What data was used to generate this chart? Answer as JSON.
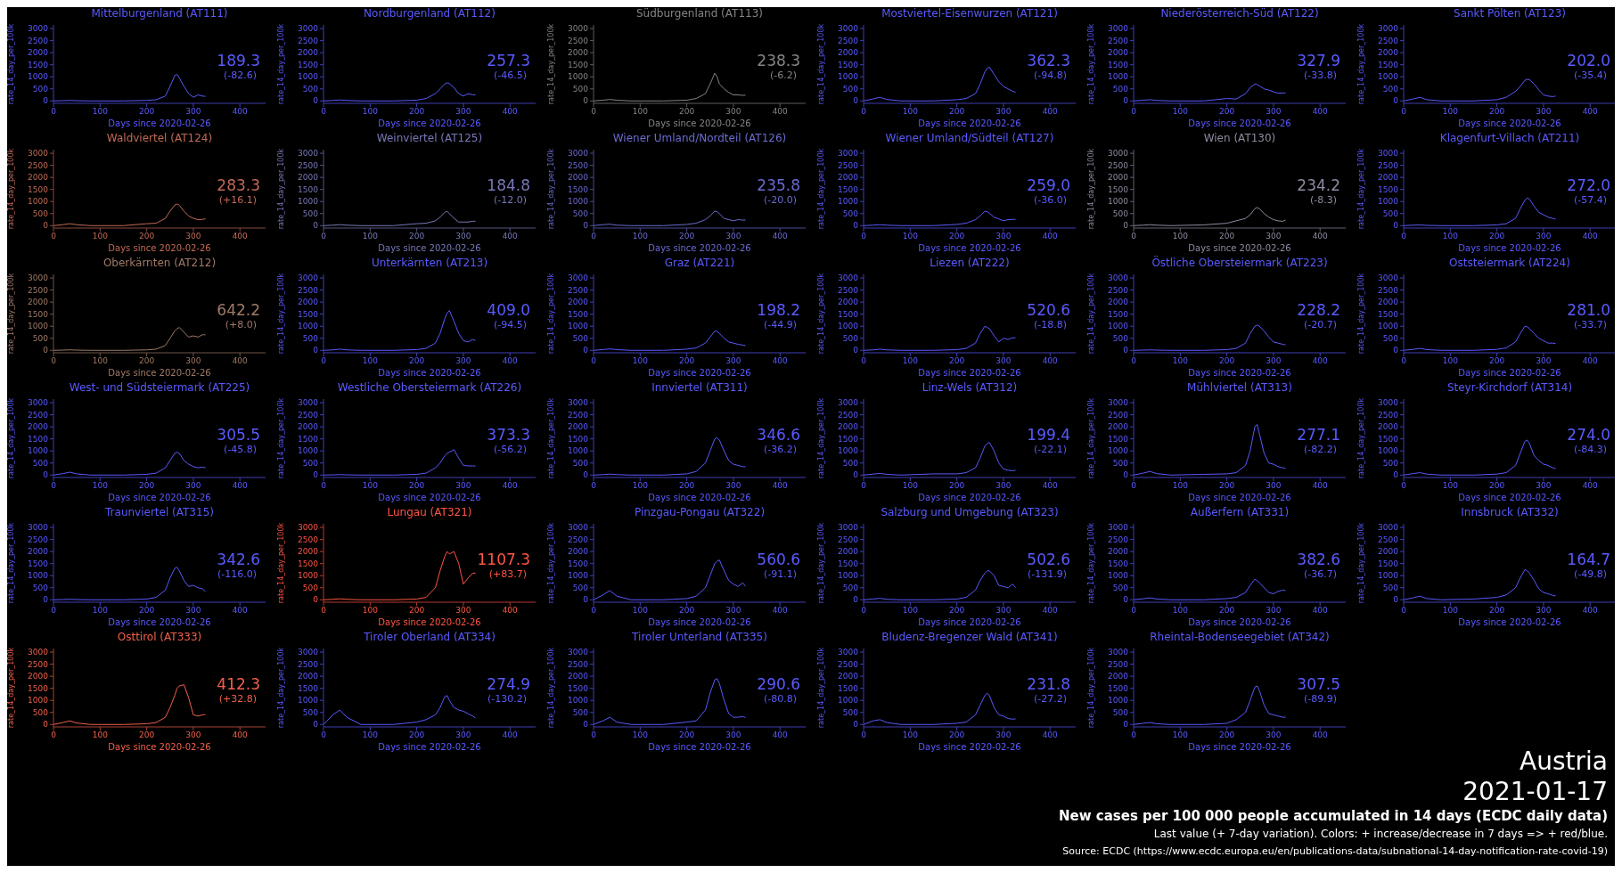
{
  "chart_data": [
    {
      "type": "line",
      "title": "Mittelburgenland (AT111)",
      "xlabel": "Days since 2020-02-26",
      "ylabel": "rate_14_day_per_100k",
      "color": "#5a5aff",
      "xlim": [
        0,
        455
      ],
      "xticks": [
        0,
        100,
        200,
        300,
        400
      ],
      "ylim": [
        -100,
        3150
      ],
      "yticks": [
        0,
        500,
        1000,
        1500,
        2000,
        2500,
        3000
      ],
      "annotations": [
        "189.3",
        "(-82.6)"
      ],
      "x": [
        0,
        20,
        35,
        50,
        80,
        150,
        200,
        220,
        240,
        250,
        260,
        265,
        270,
        280,
        290,
        300,
        310,
        320,
        326
      ],
      "values": [
        0,
        10,
        20,
        10,
        0,
        0,
        20,
        50,
        200,
        600,
        1050,
        1100,
        950,
        600,
        300,
        150,
        250,
        200,
        189.3
      ]
    },
    {
      "type": "line",
      "title": "Nordburgenland (AT112)",
      "xlabel": "Days since 2020-02-26",
      "ylabel": "rate_14_day_per_100k",
      "color": "#5a5aff",
      "xlim": [
        0,
        455
      ],
      "xticks": [
        0,
        100,
        200,
        300,
        400
      ],
      "ylim": [
        -100,
        3150
      ],
      "yticks": [
        0,
        500,
        1000,
        1500,
        2000,
        2500,
        3000
      ],
      "annotations": [
        "257.3",
        "(-46.5)"
      ],
      "x": [
        0,
        20,
        35,
        50,
        80,
        150,
        200,
        220,
        240,
        250,
        260,
        265,
        270,
        280,
        290,
        300,
        310,
        320,
        326
      ],
      "values": [
        0,
        20,
        40,
        20,
        0,
        0,
        30,
        100,
        300,
        500,
        700,
        750,
        720,
        550,
        300,
        200,
        300,
        250,
        257.3
      ]
    },
    {
      "type": "line",
      "title": "Südburgenland (AT113)",
      "xlabel": "Days since 2020-02-26",
      "ylabel": "rate_14_day_per_100k",
      "color": "#858585",
      "xlim": [
        0,
        455
      ],
      "xticks": [
        0,
        100,
        200,
        300,
        400
      ],
      "ylim": [
        -100,
        3150
      ],
      "yticks": [
        0,
        500,
        1000,
        1500,
        2000,
        2500,
        3000
      ],
      "annotations": [
        "238.3",
        "(-6.2)"
      ],
      "x": [
        0,
        20,
        35,
        50,
        80,
        150,
        200,
        220,
        240,
        250,
        260,
        265,
        270,
        280,
        290,
        300,
        310,
        320,
        326
      ],
      "values": [
        0,
        30,
        60,
        30,
        0,
        0,
        30,
        100,
        300,
        700,
        1150,
        1000,
        700,
        500,
        350,
        250,
        250,
        230,
        238.3
      ]
    },
    {
      "type": "line",
      "title": "Mostviertel-Eisenwurzen (AT121)",
      "xlabel": "Days since 2020-02-26",
      "ylabel": "rate_14_day_per_100k",
      "color": "#5a5aff",
      "xlim": [
        0,
        455
      ],
      "xticks": [
        0,
        100,
        200,
        300,
        400
      ],
      "ylim": [
        -100,
        3150
      ],
      "yticks": [
        0,
        500,
        1000,
        1500,
        2000,
        2500,
        3000
      ],
      "annotations": [
        "362.3",
        "(-94.8)"
      ],
      "x": [
        0,
        20,
        35,
        50,
        80,
        150,
        200,
        220,
        240,
        250,
        260,
        265,
        270,
        280,
        290,
        300,
        310,
        320,
        326
      ],
      "values": [
        0,
        80,
        150,
        60,
        0,
        0,
        50,
        100,
        300,
        700,
        1200,
        1350,
        1400,
        1100,
        800,
        600,
        500,
        400,
        362.3
      ]
    },
    {
      "type": "line",
      "title": "Niederösterreich-Süd (AT122)",
      "xlabel": "Days since 2020-02-26",
      "ylabel": "rate_14_day_per_100k",
      "color": "#5a5aff",
      "xlim": [
        0,
        455
      ],
      "xticks": [
        0,
        100,
        200,
        300,
        400
      ],
      "ylim": [
        -100,
        3150
      ],
      "yticks": [
        0,
        500,
        1000,
        1500,
        2000,
        2500,
        3000
      ],
      "annotations": [
        "327.9",
        "(-33.8)"
      ],
      "x": [
        0,
        20,
        35,
        50,
        80,
        150,
        200,
        220,
        240,
        250,
        260,
        265,
        270,
        280,
        290,
        300,
        310,
        320,
        326
      ],
      "values": [
        0,
        30,
        50,
        20,
        0,
        0,
        100,
        80,
        300,
        550,
        700,
        680,
        620,
        500,
        450,
        380,
        320,
        330,
        327.9
      ]
    },
    {
      "type": "line",
      "title": "Sankt Pölten (AT123)",
      "xlabel": "Days since 2020-02-26",
      "ylabel": "rate_14_day_per_100k",
      "color": "#5a5aff",
      "xlim": [
        0,
        455
      ],
      "xticks": [
        0,
        100,
        200,
        300,
        400
      ],
      "ylim": [
        -100,
        3150
      ],
      "yticks": [
        0,
        500,
        1000,
        1500,
        2000,
        2500,
        3000
      ],
      "annotations": [
        "202.0",
        "(-35.4)"
      ],
      "x": [
        0,
        20,
        35,
        50,
        80,
        150,
        200,
        220,
        240,
        250,
        260,
        265,
        270,
        280,
        290,
        300,
        310,
        320,
        326
      ],
      "values": [
        0,
        80,
        150,
        50,
        0,
        0,
        50,
        150,
        400,
        600,
        850,
        900,
        880,
        700,
        450,
        250,
        200,
        180,
        202.0
      ]
    },
    {
      "type": "line",
      "title": "Waldviertel (AT124)",
      "xlabel": "Days since 2020-02-26",
      "ylabel": "rate_14_day_per_100k",
      "color": "#c06a55",
      "xlim": [
        0,
        455
      ],
      "xticks": [
        0,
        100,
        200,
        300,
        400
      ],
      "ylim": [
        -100,
        3150
      ],
      "yticks": [
        0,
        500,
        1000,
        1500,
        2000,
        2500,
        3000
      ],
      "annotations": [
        "283.3",
        "(+16.1)"
      ],
      "x": [
        0,
        20,
        35,
        50,
        80,
        150,
        200,
        220,
        240,
        250,
        260,
        265,
        270,
        280,
        290,
        300,
        310,
        320,
        326
      ],
      "values": [
        0,
        40,
        80,
        40,
        0,
        0,
        80,
        100,
        300,
        600,
        850,
        900,
        850,
        600,
        400,
        300,
        250,
        260,
        283.3
      ]
    },
    {
      "type": "line",
      "title": "Weinviertel (AT125)",
      "xlabel": "Days since 2020-02-26",
      "ylabel": "rate_14_day_per_100k",
      "color": "#7878b8",
      "xlim": [
        0,
        455
      ],
      "xticks": [
        0,
        100,
        200,
        300,
        400
      ],
      "ylim": [
        -100,
        3150
      ],
      "yticks": [
        0,
        500,
        1000,
        1500,
        2000,
        2500,
        3000
      ],
      "annotations": [
        "184.8",
        "(-12.0)"
      ],
      "x": [
        0,
        20,
        35,
        50,
        80,
        150,
        200,
        220,
        240,
        250,
        260,
        265,
        270,
        280,
        290,
        300,
        310,
        320,
        326
      ],
      "values": [
        0,
        20,
        40,
        20,
        0,
        0,
        80,
        100,
        200,
        350,
        550,
        600,
        500,
        300,
        150,
        150,
        150,
        180,
        184.8
      ]
    },
    {
      "type": "line",
      "title": "Wiener Umland/Nordteil (AT126)",
      "xlabel": "Days since 2020-02-26",
      "ylabel": "rate_14_day_per_100k",
      "color": "#6a6ad0",
      "xlim": [
        0,
        455
      ],
      "xticks": [
        0,
        100,
        200,
        300,
        400
      ],
      "ylim": [
        -100,
        3150
      ],
      "yticks": [
        0,
        500,
        1000,
        1500,
        2000,
        2500,
        3000
      ],
      "annotations": [
        "235.8",
        "(-20.0)"
      ],
      "x": [
        0,
        20,
        35,
        50,
        80,
        150,
        200,
        220,
        240,
        250,
        260,
        265,
        270,
        280,
        290,
        300,
        310,
        320,
        326
      ],
      "values": [
        0,
        40,
        60,
        20,
        0,
        0,
        50,
        100,
        250,
        400,
        600,
        580,
        500,
        300,
        250,
        200,
        250,
        230,
        235.8
      ]
    },
    {
      "type": "line",
      "title": "Wiener Umland/Südteil (AT127)",
      "xlabel": "Days since 2020-02-26",
      "ylabel": "rate_14_day_per_100k",
      "color": "#5a5aff",
      "xlim": [
        0,
        455
      ],
      "xticks": [
        0,
        100,
        200,
        300,
        400
      ],
      "ylim": [
        -100,
        3150
      ],
      "yticks": [
        0,
        500,
        1000,
        1500,
        2000,
        2500,
        3000
      ],
      "annotations": [
        "259.0",
        "(-36.0)"
      ],
      "x": [
        0,
        20,
        35,
        50,
        80,
        150,
        200,
        220,
        240,
        250,
        260,
        265,
        270,
        280,
        290,
        300,
        310,
        320,
        326
      ],
      "values": [
        0,
        20,
        40,
        20,
        0,
        0,
        50,
        100,
        250,
        400,
        600,
        580,
        520,
        350,
        280,
        200,
        250,
        260,
        259.0
      ]
    },
    {
      "type": "line",
      "title": "Wien (AT130)",
      "xlabel": "Days since 2020-02-26",
      "ylabel": "rate_14_day_per_100k",
      "color": "#8c8ca0",
      "xlim": [
        0,
        455
      ],
      "xticks": [
        0,
        100,
        200,
        300,
        400
      ],
      "ylim": [
        -100,
        3150
      ],
      "yticks": [
        0,
        500,
        1000,
        1500,
        2000,
        2500,
        3000
      ],
      "annotations": [
        "234.2",
        "(-8.3)"
      ],
      "x": [
        0,
        20,
        35,
        50,
        80,
        150,
        200,
        220,
        240,
        250,
        260,
        265,
        270,
        280,
        290,
        300,
        310,
        320,
        326
      ],
      "values": [
        0,
        20,
        40,
        20,
        0,
        30,
        100,
        200,
        300,
        450,
        700,
        750,
        700,
        500,
        350,
        250,
        200,
        180,
        234.2
      ]
    },
    {
      "type": "line",
      "title": "Klagenfurt-Villach (AT211)",
      "xlabel": "Days since 2020-02-26",
      "ylabel": "rate_14_day_per_100k",
      "color": "#5a5aff",
      "xlim": [
        0,
        455
      ],
      "xticks": [
        0,
        100,
        200,
        300,
        400
      ],
      "ylim": [
        -100,
        3150
      ],
      "yticks": [
        0,
        500,
        1000,
        1500,
        2000,
        2500,
        3000
      ],
      "annotations": [
        "272.0",
        "(-57.4)"
      ],
      "x": [
        0,
        20,
        35,
        50,
        80,
        150,
        200,
        220,
        240,
        250,
        260,
        265,
        270,
        280,
        290,
        300,
        310,
        320,
        326
      ],
      "values": [
        0,
        20,
        30,
        10,
        0,
        0,
        30,
        80,
        300,
        700,
        1050,
        1150,
        1100,
        800,
        550,
        450,
        350,
        300,
        272.0
      ]
    },
    {
      "type": "line",
      "title": "Oberkärnten (AT212)",
      "xlabel": "Days since 2020-02-26",
      "ylabel": "rate_14_day_per_100k",
      "color": "#a07a68",
      "xlim": [
        0,
        455
      ],
      "xticks": [
        0,
        100,
        200,
        300,
        400
      ],
      "ylim": [
        -100,
        3150
      ],
      "yticks": [
        0,
        500,
        1000,
        1500,
        2000,
        2500,
        3000
      ],
      "annotations": [
        "642.2",
        "(+8.0)"
      ],
      "x": [
        0,
        20,
        35,
        50,
        80,
        150,
        200,
        220,
        240,
        250,
        260,
        265,
        270,
        280,
        290,
        300,
        310,
        320,
        326
      ],
      "values": [
        0,
        10,
        20,
        10,
        0,
        0,
        20,
        50,
        200,
        500,
        800,
        900,
        950,
        750,
        550,
        600,
        550,
        650,
        642.2
      ]
    },
    {
      "type": "line",
      "title": "Unterkärnten (AT213)",
      "xlabel": "Days since 2020-02-26",
      "ylabel": "rate_14_day_per_100k",
      "color": "#5a5aff",
      "xlim": [
        0,
        455
      ],
      "xticks": [
        0,
        100,
        200,
        300,
        400
      ],
      "ylim": [
        -100,
        3150
      ],
      "yticks": [
        0,
        500,
        1000,
        1500,
        2000,
        2500,
        3000
      ],
      "annotations": [
        "409.0",
        "(-94.5)"
      ],
      "x": [
        0,
        20,
        35,
        50,
        80,
        150,
        200,
        220,
        240,
        250,
        260,
        265,
        270,
        280,
        290,
        300,
        310,
        320,
        326
      ],
      "values": [
        0,
        20,
        50,
        20,
        0,
        0,
        30,
        80,
        300,
        700,
        1300,
        1550,
        1650,
        1200,
        700,
        400,
        350,
        450,
        409.0
      ]
    },
    {
      "type": "line",
      "title": "Graz (AT221)",
      "xlabel": "Days since 2020-02-26",
      "ylabel": "rate_14_day_per_100k",
      "color": "#5a5aff",
      "xlim": [
        0,
        455
      ],
      "xticks": [
        0,
        100,
        200,
        300,
        400
      ],
      "ylim": [
        -100,
        3150
      ],
      "yticks": [
        0,
        500,
        1000,
        1500,
        2000,
        2500,
        3000
      ],
      "annotations": [
        "198.2",
        "(-44.9)"
      ],
      "x": [
        0,
        20,
        35,
        50,
        80,
        150,
        200,
        220,
        240,
        250,
        260,
        265,
        270,
        280,
        290,
        300,
        310,
        320,
        326
      ],
      "values": [
        0,
        30,
        60,
        30,
        0,
        0,
        50,
        100,
        300,
        550,
        800,
        780,
        700,
        500,
        350,
        300,
        250,
        220,
        198.2
      ]
    },
    {
      "type": "line",
      "title": "Liezen (AT222)",
      "xlabel": "Days since 2020-02-26",
      "ylabel": "rate_14_day_per_100k",
      "color": "#5a5aff",
      "xlim": [
        0,
        455
      ],
      "xticks": [
        0,
        100,
        200,
        300,
        400
      ],
      "ylim": [
        -100,
        3150
      ],
      "yticks": [
        0,
        500,
        1000,
        1500,
        2000,
        2500,
        3000
      ],
      "annotations": [
        "520.6",
        "(-18.8)"
      ],
      "x": [
        0,
        20,
        35,
        50,
        80,
        150,
        200,
        220,
        240,
        250,
        260,
        265,
        270,
        280,
        290,
        300,
        310,
        320,
        326
      ],
      "values": [
        0,
        20,
        50,
        20,
        0,
        0,
        30,
        80,
        300,
        700,
        1000,
        950,
        900,
        600,
        350,
        500,
        450,
        520,
        520.6
      ]
    },
    {
      "type": "line",
      "title": "Östliche Obersteiermark (AT223)",
      "xlabel": "Days since 2020-02-26",
      "ylabel": "rate_14_day_per_100k",
      "color": "#5a5aff",
      "xlim": [
        0,
        455
      ],
      "xticks": [
        0,
        100,
        200,
        300,
        400
      ],
      "ylim": [
        -100,
        3150
      ],
      "yticks": [
        0,
        500,
        1000,
        1500,
        2000,
        2500,
        3000
      ],
      "annotations": [
        "228.2",
        "(-20.7)"
      ],
      "x": [
        0,
        20,
        35,
        50,
        80,
        150,
        200,
        220,
        240,
        250,
        260,
        265,
        270,
        280,
        290,
        300,
        310,
        320,
        326
      ],
      "values": [
        0,
        10,
        20,
        10,
        0,
        0,
        30,
        80,
        300,
        700,
        1000,
        1050,
        1000,
        800,
        550,
        350,
        300,
        250,
        228.2
      ]
    },
    {
      "type": "line",
      "title": "Oststeiermark (AT224)",
      "xlabel": "Days since 2020-02-26",
      "ylabel": "rate_14_day_per_100k",
      "color": "#5a5aff",
      "xlim": [
        0,
        455
      ],
      "xticks": [
        0,
        100,
        200,
        300,
        400
      ],
      "ylim": [
        -100,
        3150
      ],
      "yticks": [
        0,
        500,
        1000,
        1500,
        2000,
        2500,
        3000
      ],
      "annotations": [
        "281.0",
        "(-33.7)"
      ],
      "x": [
        0,
        20,
        35,
        50,
        80,
        150,
        200,
        220,
        240,
        250,
        260,
        265,
        270,
        280,
        290,
        300,
        310,
        320,
        326
      ],
      "values": [
        0,
        40,
        80,
        30,
        0,
        0,
        40,
        100,
        350,
        700,
        1000,
        980,
        900,
        700,
        500,
        400,
        300,
        300,
        281.0
      ]
    },
    {
      "type": "line",
      "title": "West- und Südsteiermark (AT225)",
      "xlabel": "Days since 2020-02-26",
      "ylabel": "rate_14_day_per_100k",
      "color": "#5a5aff",
      "xlim": [
        0,
        455
      ],
      "xticks": [
        0,
        100,
        200,
        300,
        400
      ],
      "ylim": [
        -100,
        3150
      ],
      "yticks": [
        0,
        500,
        1000,
        1500,
        2000,
        2500,
        3000
      ],
      "annotations": [
        "305.5",
        "(-45.8)"
      ],
      "x": [
        0,
        20,
        35,
        50,
        80,
        150,
        200,
        220,
        240,
        250,
        260,
        265,
        270,
        280,
        290,
        300,
        310,
        320,
        326
      ],
      "values": [
        0,
        60,
        120,
        50,
        0,
        0,
        30,
        80,
        300,
        600,
        900,
        950,
        900,
        600,
        450,
        350,
        300,
        330,
        305.5
      ]
    },
    {
      "type": "line",
      "title": "Westliche Obersteiermark (AT226)",
      "xlabel": "Days since 2020-02-26",
      "ylabel": "rate_14_day_per_100k",
      "color": "#5a5aff",
      "xlim": [
        0,
        455
      ],
      "xticks": [
        0,
        100,
        200,
        300,
        400
      ],
      "ylim": [
        -100,
        3150
      ],
      "yticks": [
        0,
        500,
        1000,
        1500,
        2000,
        2500,
        3000
      ],
      "annotations": [
        "373.3",
        "(-56.2)"
      ],
      "x": [
        0,
        20,
        35,
        50,
        80,
        150,
        200,
        220,
        240,
        250,
        260,
        265,
        270,
        280,
        290,
        300,
        310,
        320,
        326
      ],
      "values": [
        0,
        10,
        20,
        10,
        0,
        0,
        30,
        80,
        300,
        500,
        800,
        900,
        950,
        1050,
        700,
        400,
        380,
        380,
        373.3
      ]
    },
    {
      "type": "line",
      "title": "Innviertel (AT311)",
      "xlabel": "Days since 2020-02-26",
      "ylabel": "rate_14_day_per_100k",
      "color": "#5a5aff",
      "xlim": [
        0,
        455
      ],
      "xticks": [
        0,
        100,
        200,
        300,
        400
      ],
      "ylim": [
        -100,
        3150
      ],
      "yticks": [
        0,
        500,
        1000,
        1500,
        2000,
        2500,
        3000
      ],
      "annotations": [
        "346.6",
        "(-36.2)"
      ],
      "x": [
        0,
        20,
        35,
        50,
        80,
        150,
        200,
        220,
        240,
        250,
        260,
        265,
        270,
        280,
        290,
        300,
        310,
        320,
        326
      ],
      "values": [
        0,
        20,
        40,
        20,
        0,
        0,
        50,
        150,
        500,
        1000,
        1500,
        1550,
        1450,
        1000,
        600,
        450,
        400,
        350,
        346.6
      ]
    },
    {
      "type": "line",
      "title": "Linz-Wels (AT312)",
      "xlabel": "Days since 2020-02-26",
      "ylabel": "rate_14_day_per_100k",
      "color": "#5a5aff",
      "xlim": [
        0,
        455
      ],
      "xticks": [
        0,
        100,
        200,
        300,
        400
      ],
      "ylim": [
        -100,
        3150
      ],
      "yticks": [
        0,
        500,
        1000,
        1500,
        2000,
        2500,
        3000
      ],
      "annotations": [
        "199.4",
        "(-22.1)"
      ],
      "x": [
        0,
        20,
        35,
        50,
        80,
        150,
        200,
        220,
        240,
        250,
        260,
        265,
        270,
        280,
        290,
        300,
        310,
        320,
        326
      ],
      "values": [
        0,
        40,
        70,
        30,
        0,
        50,
        50,
        100,
        300,
        700,
        1200,
        1300,
        1350,
        1000,
        500,
        250,
        200,
        180,
        199.4
      ]
    },
    {
      "type": "line",
      "title": "Mühlviertel (AT313)",
      "xlabel": "Days since 2020-02-26",
      "ylabel": "rate_14_day_per_100k",
      "color": "#5a5aff",
      "xlim": [
        0,
        455
      ],
      "xticks": [
        0,
        100,
        200,
        300,
        400
      ],
      "ylim": [
        -100,
        3150
      ],
      "yticks": [
        0,
        500,
        1000,
        1500,
        2000,
        2500,
        3000
      ],
      "annotations": [
        "277.1",
        "(-82.2)"
      ],
      "x": [
        0,
        20,
        35,
        50,
        80,
        150,
        200,
        220,
        240,
        250,
        260,
        265,
        270,
        280,
        290,
        300,
        310,
        320,
        326
      ],
      "values": [
        0,
        80,
        150,
        60,
        0,
        30,
        50,
        100,
        400,
        1000,
        2000,
        2100,
        1700,
        900,
        500,
        450,
        350,
        300,
        277.1
      ]
    },
    {
      "type": "line",
      "title": "Steyr-Kirchdorf (AT314)",
      "xlabel": "Days since 2020-02-26",
      "ylabel": "rate_14_day_per_100k",
      "color": "#5a5aff",
      "xlim": [
        0,
        455
      ],
      "xticks": [
        0,
        100,
        200,
        300,
        400
      ],
      "ylim": [
        -100,
        3150
      ],
      "yticks": [
        0,
        500,
        1000,
        1500,
        2000,
        2500,
        3000
      ],
      "annotations": [
        "274.0",
        "(-84.3)"
      ],
      "x": [
        0,
        20,
        35,
        50,
        80,
        150,
        200,
        220,
        240,
        250,
        260,
        265,
        270,
        280,
        290,
        300,
        310,
        320,
        326
      ],
      "values": [
        0,
        60,
        100,
        40,
        0,
        0,
        40,
        100,
        400,
        900,
        1400,
        1450,
        1300,
        800,
        600,
        450,
        400,
        300,
        274.0
      ]
    },
    {
      "type": "line",
      "title": "Traunviertel (AT315)",
      "xlabel": "Days since 2020-02-26",
      "ylabel": "rate_14_day_per_100k",
      "color": "#5a5aff",
      "xlim": [
        0,
        455
      ],
      "xticks": [
        0,
        100,
        200,
        300,
        400
      ],
      "ylim": [
        -100,
        3150
      ],
      "yticks": [
        0,
        500,
        1000,
        1500,
        2000,
        2500,
        3000
      ],
      "annotations": [
        "342.6",
        "(-116.0)"
      ],
      "x": [
        0,
        20,
        35,
        50,
        80,
        150,
        200,
        220,
        240,
        250,
        260,
        265,
        270,
        280,
        290,
        300,
        310,
        320,
        326
      ],
      "values": [
        0,
        10,
        20,
        10,
        0,
        0,
        30,
        100,
        400,
        900,
        1300,
        1350,
        1200,
        800,
        550,
        600,
        500,
        450,
        342.6
      ]
    },
    {
      "type": "line",
      "title": "Lungau (AT321)",
      "xlabel": "Days since 2020-02-26",
      "ylabel": "rate_14_day_per_100k",
      "color": "#ff5544",
      "xlim": [
        0,
        455
      ],
      "xticks": [
        0,
        100,
        200,
        300,
        400
      ],
      "ylim": [
        -100,
        3150
      ],
      "yticks": [
        0,
        500,
        1000,
        1500,
        2000,
        2500,
        3000
      ],
      "annotations": [
        "1107.3",
        "(+83.7)"
      ],
      "x": [
        0,
        20,
        35,
        50,
        80,
        150,
        200,
        220,
        240,
        250,
        260,
        265,
        270,
        280,
        290,
        300,
        310,
        320,
        326
      ],
      "values": [
        0,
        20,
        40,
        20,
        0,
        0,
        30,
        100,
        500,
        1200,
        1800,
        2000,
        1900,
        2000,
        1500,
        650,
        900,
        1100,
        1107.3
      ]
    },
    {
      "type": "line",
      "title": "Pinzgau-Pongau (AT322)",
      "xlabel": "Days since 2020-02-26",
      "ylabel": "rate_14_day_per_100k",
      "color": "#5a5aff",
      "xlim": [
        0,
        455
      ],
      "xticks": [
        0,
        100,
        200,
        300,
        400
      ],
      "ylim": [
        -100,
        3150
      ],
      "yticks": [
        0,
        500,
        1000,
        1500,
        2000,
        2500,
        3000
      ],
      "annotations": [
        "560.6",
        "(-91.1)"
      ],
      "x": [
        0,
        20,
        35,
        50,
        80,
        150,
        200,
        220,
        240,
        250,
        260,
        265,
        270,
        280,
        290,
        300,
        310,
        320,
        326
      ],
      "values": [
        0,
        200,
        380,
        150,
        0,
        0,
        50,
        150,
        500,
        1000,
        1500,
        1600,
        1650,
        1200,
        800,
        650,
        550,
        700,
        560.6
      ]
    },
    {
      "type": "line",
      "title": "Salzburg und Umgebung (AT323)",
      "xlabel": "Days since 2020-02-26",
      "ylabel": "rate_14_day_per_100k",
      "color": "#5a5aff",
      "xlim": [
        0,
        455
      ],
      "xticks": [
        0,
        100,
        200,
        300,
        400
      ],
      "ylim": [
        -100,
        3150
      ],
      "yticks": [
        0,
        500,
        1000,
        1500,
        2000,
        2500,
        3000
      ],
      "annotations": [
        "502.6",
        "(-131.9)"
      ],
      "x": [
        0,
        20,
        35,
        50,
        80,
        150,
        200,
        220,
        240,
        250,
        260,
        265,
        270,
        280,
        290,
        300,
        310,
        320,
        326
      ],
      "values": [
        0,
        30,
        60,
        20,
        0,
        0,
        30,
        100,
        400,
        800,
        1100,
        1200,
        1200,
        1000,
        600,
        550,
        500,
        650,
        502.6
      ]
    },
    {
      "type": "line",
      "title": "Außerfern (AT331)",
      "xlabel": "Days since 2020-02-26",
      "ylabel": "rate_14_day_per_100k",
      "color": "#5a5aff",
      "xlim": [
        0,
        455
      ],
      "xticks": [
        0,
        100,
        200,
        300,
        400
      ],
      "ylim": [
        -100,
        3150
      ],
      "yticks": [
        0,
        500,
        1000,
        1500,
        2000,
        2500,
        3000
      ],
      "annotations": [
        "382.6",
        "(-36.7)"
      ],
      "x": [
        0,
        20,
        35,
        50,
        80,
        150,
        200,
        220,
        240,
        250,
        260,
        265,
        270,
        280,
        290,
        300,
        310,
        320,
        326
      ],
      "values": [
        0,
        40,
        80,
        30,
        0,
        0,
        50,
        100,
        300,
        600,
        850,
        800,
        700,
        500,
        300,
        250,
        350,
        400,
        382.6
      ]
    },
    {
      "type": "line",
      "title": "Innsbruck (AT332)",
      "xlabel": "Days since 2020-02-26",
      "ylabel": "rate_14_day_per_100k",
      "color": "#5a5aff",
      "xlim": [
        0,
        455
      ],
      "xticks": [
        0,
        100,
        200,
        300,
        400
      ],
      "ylim": [
        -100,
        3150
      ],
      "yticks": [
        0,
        500,
        1000,
        1500,
        2000,
        2500,
        3000
      ],
      "annotations": [
        "164.7",
        "(-49.8)"
      ],
      "x": [
        0,
        20,
        35,
        50,
        80,
        150,
        200,
        220,
        240,
        250,
        260,
        265,
        270,
        280,
        290,
        300,
        310,
        320,
        326
      ],
      "values": [
        0,
        80,
        150,
        50,
        0,
        30,
        100,
        200,
        500,
        900,
        1250,
        1200,
        1100,
        800,
        450,
        300,
        250,
        180,
        164.7
      ]
    },
    {
      "type": "line",
      "title": "Osttirol (AT333)",
      "xlabel": "Days since 2020-02-26",
      "ylabel": "rate_14_day_per_100k",
      "color": "#f0604c",
      "xlim": [
        0,
        455
      ],
      "xticks": [
        0,
        100,
        200,
        300,
        400
      ],
      "ylim": [
        -100,
        3150
      ],
      "yticks": [
        0,
        500,
        1000,
        1500,
        2000,
        2500,
        3000
      ],
      "annotations": [
        "412.3",
        "(+32.8)"
      ],
      "x": [
        0,
        20,
        35,
        50,
        80,
        150,
        200,
        220,
        240,
        250,
        260,
        265,
        270,
        280,
        290,
        300,
        310,
        320,
        326
      ],
      "values": [
        0,
        80,
        150,
        60,
        0,
        0,
        30,
        80,
        300,
        700,
        1200,
        1500,
        1600,
        1650,
        1100,
        400,
        350,
        400,
        412.3
      ]
    },
    {
      "type": "line",
      "title": "Tiroler Oberland (AT334)",
      "xlabel": "Days since 2020-02-26",
      "ylabel": "rate_14_day_per_100k",
      "color": "#5a5aff",
      "xlim": [
        0,
        455
      ],
      "xticks": [
        0,
        100,
        200,
        300,
        400
      ],
      "ylim": [
        -100,
        3150
      ],
      "yticks": [
        0,
        500,
        1000,
        1500,
        2000,
        2500,
        3000
      ],
      "annotations": [
        "274.9",
        "(-130.2)"
      ],
      "x": [
        0,
        20,
        35,
        50,
        80,
        150,
        200,
        220,
        240,
        250,
        260,
        265,
        270,
        280,
        290,
        300,
        310,
        320,
        326
      ],
      "values": [
        0,
        400,
        600,
        300,
        0,
        0,
        100,
        200,
        400,
        700,
        1150,
        1200,
        1000,
        700,
        600,
        550,
        450,
        350,
        274.9
      ]
    },
    {
      "type": "line",
      "title": "Tiroler Unterland (AT335)",
      "xlabel": "Days since 2020-02-26",
      "ylabel": "rate_14_day_per_100k",
      "color": "#5a5aff",
      "xlim": [
        0,
        455
      ],
      "xticks": [
        0,
        100,
        200,
        300,
        400
      ],
      "ylim": [
        -100,
        3150
      ],
      "yticks": [
        0,
        500,
        1000,
        1500,
        2000,
        2500,
        3000
      ],
      "annotations": [
        "290.6",
        "(-80.8)"
      ],
      "x": [
        0,
        20,
        35,
        50,
        80,
        150,
        200,
        220,
        240,
        250,
        260,
        265,
        270,
        280,
        290,
        300,
        310,
        320,
        326
      ],
      "values": [
        0,
        150,
        300,
        100,
        0,
        0,
        100,
        150,
        600,
        1300,
        1850,
        1900,
        1700,
        1000,
        450,
        300,
        300,
        330,
        290.6
      ]
    },
    {
      "type": "line",
      "title": "Bludenz-Bregenzer Wald (AT341)",
      "xlabel": "Days since 2020-02-26",
      "ylabel": "rate_14_day_per_100k",
      "color": "#5a5aff",
      "xlim": [
        0,
        455
      ],
      "xticks": [
        0,
        100,
        200,
        300,
        400
      ],
      "ylim": [
        -100,
        3150
      ],
      "yticks": [
        0,
        500,
        1000,
        1500,
        2000,
        2500,
        3000
      ],
      "annotations": [
        "231.8",
        "(-27.2)"
      ],
      "x": [
        0,
        20,
        35,
        50,
        80,
        150,
        200,
        220,
        240,
        250,
        260,
        265,
        270,
        280,
        290,
        300,
        310,
        320,
        326
      ],
      "values": [
        0,
        150,
        200,
        80,
        0,
        0,
        50,
        100,
        400,
        800,
        1200,
        1300,
        1200,
        700,
        400,
        350,
        250,
        220,
        231.8
      ]
    },
    {
      "type": "line",
      "title": "Rheintal-Bodenseegebiet (AT342)",
      "xlabel": "Days since 2020-02-26",
      "ylabel": "rate_14_day_per_100k",
      "color": "#5a5aff",
      "xlim": [
        0,
        455
      ],
      "xticks": [
        0,
        100,
        200,
        300,
        400
      ],
      "ylim": [
        -100,
        3150
      ],
      "yticks": [
        0,
        500,
        1000,
        1500,
        2000,
        2500,
        3000
      ],
      "annotations": [
        "307.5",
        "(-89.9)"
      ],
      "x": [
        0,
        20,
        35,
        50,
        80,
        150,
        200,
        220,
        240,
        250,
        260,
        265,
        270,
        280,
        290,
        300,
        310,
        320,
        326
      ],
      "values": [
        0,
        50,
        80,
        30,
        0,
        0,
        50,
        200,
        500,
        1000,
        1550,
        1600,
        1400,
        800,
        450,
        400,
        350,
        300,
        307.5
      ]
    },
    {
      "type": "other",
      "title": "Austria",
      "subtitle": "2021-01-17",
      "annotations": [
        "New cases per 100 000 people accumulated in 14 days (ECDC daily data)",
        "Last value (+ 7-day variation). Colors: + increase/decrease in 7 days => + red/blue.",
        "Source: ECDC (https://www.ecdc.europa.eu/en/publications-data/subnational-14-day-notification-rate-covid-19)"
      ]
    }
  ]
}
